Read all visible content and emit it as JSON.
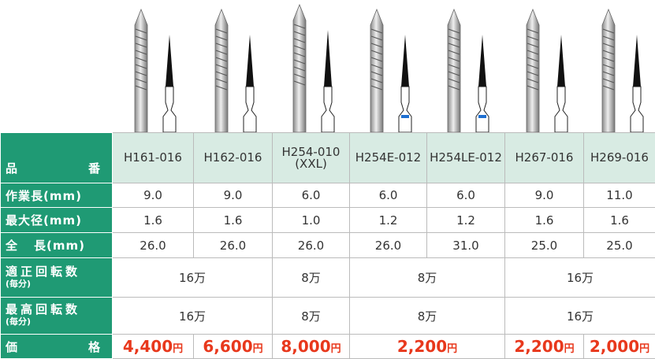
{
  "table": {
    "header": {
      "label": [
        "品",
        "番"
      ],
      "products": [
        {
          "code": "H161-016"
        },
        {
          "code": "H162-016"
        },
        {
          "code": "H254-010",
          "note": "(XXL)"
        },
        {
          "code": "H254E-012"
        },
        {
          "code": "H254LE-012"
        },
        {
          "code": "H267-016"
        },
        {
          "code": "H269-016"
        }
      ]
    },
    "rows": [
      {
        "label": "作業長(mm)",
        "values": [
          "9.0",
          "9.0",
          "6.0",
          "6.0",
          "6.0",
          "9.0",
          "11.0"
        ]
      },
      {
        "label": "最大径(mm)",
        "values": [
          "1.6",
          "1.6",
          "1.0",
          "1.2",
          "1.2",
          "1.6",
          "1.6"
        ]
      },
      {
        "label": [
          "全",
          "長(mm)"
        ],
        "values": [
          "26.0",
          "26.0",
          "26.0",
          "26.0",
          "31.0",
          "25.0",
          "25.0"
        ]
      },
      {
        "label": "適正回転数",
        "sub": "(毎分)",
        "values": [
          "16万",
          "8万",
          "8万",
          "16万"
        ]
      },
      {
        "label": "最高回転数",
        "sub": "(毎分)",
        "values": [
          "16万",
          "8万",
          "8万",
          "16万"
        ]
      },
      {
        "label": [
          "価",
          "格"
        ],
        "prices": [
          {
            "amount": "4,400",
            "unit": "円"
          },
          {
            "amount": "6,600",
            "unit": "円"
          },
          {
            "amount": "8,000",
            "unit": "円"
          },
          {
            "amount": "2,200",
            "unit": "円"
          },
          {
            "amount": "2,200",
            "unit": "円"
          },
          {
            "amount": "2,000",
            "unit": "円"
          }
        ]
      }
    ]
  }
}
